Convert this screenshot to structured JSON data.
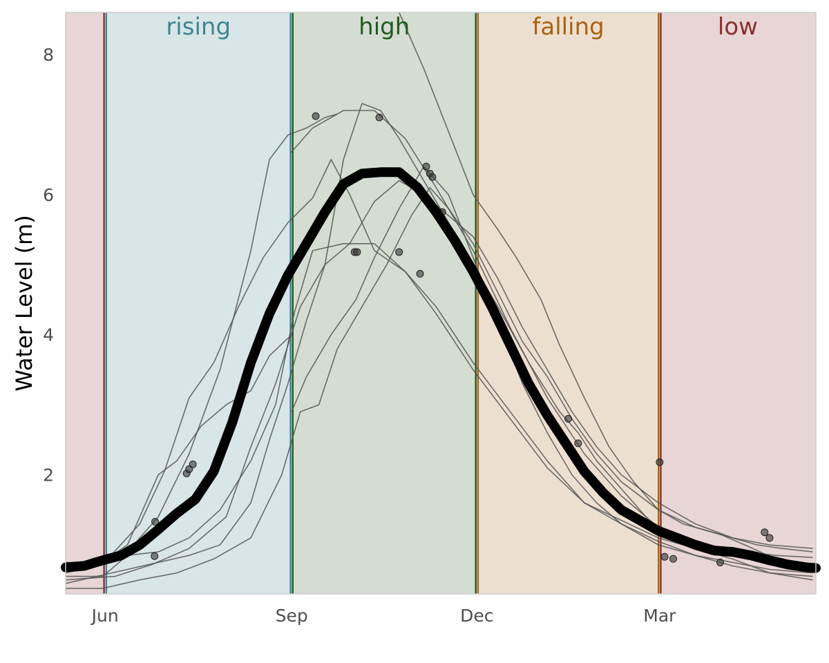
{
  "chart_data": {
    "type": "line",
    "title": "",
    "xlabel": "",
    "ylabel": "Water Level (m)",
    "x_unit": "months since 1 May",
    "xlim": [
      0,
      12.15
    ],
    "ylim": [
      0.3,
      8.6
    ],
    "x_ticks": [
      {
        "label": "Jun",
        "x": 0.64
      },
      {
        "label": "Sep",
        "x": 3.66
      },
      {
        "label": "Dec",
        "x": 6.66
      },
      {
        "label": "Mar",
        "x": 9.62
      }
    ],
    "y_ticks": [
      2,
      4,
      6,
      8
    ],
    "grid": false,
    "legend": "none",
    "phases": [
      {
        "name": "low",
        "label": "",
        "start": 0.0,
        "end": 0.64,
        "color": "#8b2f2f",
        "fill": "#e8d5d5"
      },
      {
        "name": "rising",
        "label": "rising",
        "start": 0.64,
        "end": 3.66,
        "color": "#3f8590",
        "fill": "#d8e6e8"
      },
      {
        "name": "high",
        "label": "high",
        "start": 3.66,
        "end": 6.66,
        "color": "#1f5a1f",
        "fill": "#d5ddd2"
      },
      {
        "name": "falling",
        "label": "falling",
        "start": 6.66,
        "end": 9.62,
        "color": "#a86210",
        "fill": "#eddfd0"
      },
      {
        "name": "low",
        "label": "low",
        "start": 9.62,
        "end": 12.15,
        "color": "#8b2f2f",
        "fill": "#e8d5d5"
      }
    ],
    "boundary_lines": [
      {
        "x": 0.64,
        "color_left": "#8b2f2f",
        "color_right": "#3f8590"
      },
      {
        "x": 3.66,
        "color_left": "#3f8590",
        "color_right": "#1f5a1f"
      },
      {
        "x": 6.66,
        "color_left": "#1f5a1f",
        "color_right": "#a86210"
      },
      {
        "x": 9.62,
        "color_left": "#a86210",
        "color_right": "#8b2f2f"
      }
    ],
    "mean_series": {
      "name": "",
      "color": "#000000",
      "points": [
        [
          0.0,
          0.68
        ],
        [
          0.3,
          0.7
        ],
        [
          0.6,
          0.78
        ],
        [
          0.9,
          0.85
        ],
        [
          1.2,
          1.0
        ],
        [
          1.5,
          1.22
        ],
        [
          1.8,
          1.45
        ],
        [
          2.1,
          1.65
        ],
        [
          2.4,
          2.05
        ],
        [
          2.7,
          2.75
        ],
        [
          3.0,
          3.6
        ],
        [
          3.3,
          4.3
        ],
        [
          3.6,
          4.85
        ],
        [
          3.9,
          5.3
        ],
        [
          4.2,
          5.75
        ],
        [
          4.5,
          6.15
        ],
        [
          4.8,
          6.3
        ],
        [
          5.1,
          6.32
        ],
        [
          5.4,
          6.32
        ],
        [
          5.7,
          6.1
        ],
        [
          6.0,
          5.75
        ],
        [
          6.3,
          5.35
        ],
        [
          6.6,
          4.9
        ],
        [
          6.9,
          4.4
        ],
        [
          7.2,
          3.85
        ],
        [
          7.5,
          3.3
        ],
        [
          7.8,
          2.85
        ],
        [
          8.1,
          2.45
        ],
        [
          8.4,
          2.05
        ],
        [
          8.7,
          1.75
        ],
        [
          9.0,
          1.5
        ],
        [
          9.3,
          1.35
        ],
        [
          9.6,
          1.2
        ],
        [
          9.9,
          1.1
        ],
        [
          10.2,
          1.0
        ],
        [
          10.5,
          0.92
        ],
        [
          10.8,
          0.9
        ],
        [
          11.1,
          0.85
        ],
        [
          11.4,
          0.78
        ],
        [
          11.7,
          0.72
        ],
        [
          12.0,
          0.68
        ],
        [
          12.15,
          0.67
        ]
      ]
    },
    "series": [
      {
        "name": "",
        "color": "#555555",
        "points": [
          [
            0.0,
            0.75
          ],
          [
            0.5,
            0.72
          ],
          [
            1.0,
            0.9
          ],
          [
            1.5,
            1.4
          ],
          [
            2.0,
            2.3
          ],
          [
            2.5,
            3.5
          ],
          [
            3.0,
            5.2
          ],
          [
            3.3,
            6.5
          ],
          [
            3.6,
            6.85
          ],
          [
            3.9,
            6.95
          ],
          [
            4.2,
            7.1
          ],
          [
            4.4,
            7.15
          ]
        ]
      },
      {
        "name": "",
        "color": "#555555",
        "points": [
          [
            3.65,
            6.6
          ],
          [
            4.0,
            6.95
          ],
          [
            4.5,
            7.2
          ],
          [
            5.0,
            7.2
          ],
          [
            5.5,
            6.8
          ],
          [
            6.0,
            6.1
          ],
          [
            6.6,
            5.2
          ],
          [
            7.2,
            4.1
          ],
          [
            7.8,
            3.1
          ],
          [
            8.4,
            2.3
          ],
          [
            9.0,
            1.7
          ],
          [
            9.6,
            1.25
          ],
          [
            10.2,
            1.0
          ],
          [
            10.8,
            0.85
          ],
          [
            11.4,
            0.75
          ],
          [
            12.1,
            0.7
          ]
        ]
      },
      {
        "name": "",
        "color": "#555555",
        "points": [
          [
            0.0,
            0.45
          ],
          [
            0.5,
            0.55
          ],
          [
            1.0,
            0.65
          ],
          [
            1.5,
            0.75
          ],
          [
            2.0,
            0.85
          ],
          [
            2.5,
            1.0
          ],
          [
            3.0,
            1.6
          ],
          [
            3.3,
            2.5
          ],
          [
            3.6,
            3.3
          ],
          [
            3.9,
            4.2
          ],
          [
            4.2,
            5.0
          ],
          [
            4.5,
            6.5
          ],
          [
            4.8,
            7.3
          ],
          [
            5.1,
            7.2
          ],
          [
            5.4,
            6.8
          ],
          [
            5.8,
            6.2
          ],
          [
            6.2,
            5.6
          ],
          [
            6.6,
            5.0
          ],
          [
            7.0,
            4.4
          ],
          [
            7.5,
            3.6
          ],
          [
            8.0,
            2.9
          ],
          [
            8.3,
            2.6
          ],
          [
            8.6,
            2.2
          ],
          [
            9.0,
            1.8
          ],
          [
            9.5,
            1.3
          ],
          [
            10.0,
            1.05
          ],
          [
            10.5,
            0.95
          ],
          [
            11.0,
            0.9
          ],
          [
            11.5,
            0.85
          ],
          [
            12.1,
            0.82
          ]
        ]
      },
      {
        "name": "",
        "color": "#555555",
        "points": [
          [
            3.66,
            2.9
          ],
          [
            3.9,
            3.4
          ],
          [
            4.3,
            4.0
          ],
          [
            4.7,
            4.5
          ],
          [
            5.0,
            5.1
          ],
          [
            5.4,
            5.8
          ],
          [
            5.8,
            6.4
          ],
          [
            6.2,
            6.0
          ],
          [
            6.6,
            5.1
          ],
          [
            7.0,
            4.2
          ],
          [
            7.4,
            3.3
          ],
          [
            7.8,
            2.6
          ],
          [
            8.2,
            2.0
          ],
          [
            8.6,
            1.6
          ],
          [
            9.0,
            1.3
          ],
          [
            9.6,
            1.0
          ],
          [
            10.2,
            0.85
          ],
          [
            10.8,
            0.75
          ],
          [
            11.4,
            0.65
          ],
          [
            12.1,
            0.6
          ]
        ]
      },
      {
        "name": "",
        "color": "#555555",
        "points": [
          [
            0.0,
            0.6
          ],
          [
            0.6,
            0.72
          ],
          [
            1.2,
            1.3
          ],
          [
            1.6,
            2.05
          ],
          [
            2.0,
            3.1
          ],
          [
            2.4,
            3.6
          ],
          [
            2.8,
            4.4
          ],
          [
            3.2,
            5.1
          ],
          [
            3.6,
            5.6
          ],
          [
            4.0,
            5.95
          ],
          [
            4.3,
            6.5
          ],
          [
            4.6,
            6.0
          ],
          [
            5.0,
            5.2
          ],
          [
            5.5,
            4.9
          ],
          [
            6.0,
            4.3
          ],
          [
            6.6,
            3.5
          ],
          [
            7.2,
            2.8
          ],
          [
            7.8,
            2.1
          ],
          [
            8.4,
            1.6
          ],
          [
            9.0,
            1.35
          ],
          [
            9.6,
            1.1
          ],
          [
            10.2,
            0.95
          ],
          [
            10.8,
            0.8
          ],
          [
            11.4,
            0.6
          ],
          [
            12.1,
            0.5
          ]
        ]
      },
      {
        "name": "",
        "color": "#555555",
        "points": [
          [
            0.0,
            0.55
          ],
          [
            0.6,
            0.55
          ],
          [
            1.0,
            0.85
          ],
          [
            1.5,
            0.9
          ],
          [
            2.0,
            1.1
          ],
          [
            2.5,
            1.5
          ],
          [
            3.0,
            2.2
          ],
          [
            3.4,
            3.0
          ],
          [
            3.7,
            4.3
          ],
          [
            4.0,
            5.2
          ],
          [
            4.5,
            5.3
          ],
          [
            5.0,
            5.3
          ],
          [
            5.5,
            4.9
          ],
          [
            6.0,
            4.4
          ],
          [
            6.6,
            3.6
          ],
          [
            7.2,
            2.9
          ],
          [
            7.8,
            2.2
          ],
          [
            8.4,
            1.6
          ],
          [
            9.0,
            1.3
          ],
          [
            9.6,
            1.05
          ],
          [
            10.2,
            0.85
          ],
          [
            10.8,
            0.7
          ],
          [
            11.4,
            0.6
          ],
          [
            12.1,
            0.55
          ]
        ]
      },
      {
        "name": "",
        "color": "#555555",
        "points": [
          [
            0.0,
            0.38
          ],
          [
            0.6,
            0.38
          ],
          [
            1.2,
            0.5
          ],
          [
            1.8,
            0.6
          ],
          [
            2.4,
            0.8
          ],
          [
            3.0,
            1.1
          ],
          [
            3.5,
            2.0
          ],
          [
            3.8,
            2.9
          ],
          [
            4.1,
            3.0
          ],
          [
            4.4,
            3.8
          ],
          [
            4.8,
            4.4
          ],
          [
            5.2,
            5.0
          ],
          [
            5.6,
            5.7
          ],
          [
            5.9,
            6.1
          ],
          [
            6.2,
            5.8
          ],
          [
            6.6,
            5.3
          ],
          [
            7.0,
            4.6
          ],
          [
            7.4,
            3.9
          ],
          [
            7.8,
            3.4
          ],
          [
            8.2,
            2.8
          ],
          [
            8.6,
            2.3
          ],
          [
            9.0,
            1.9
          ],
          [
            9.6,
            1.5
          ],
          [
            10.2,
            1.25
          ],
          [
            10.6,
            1.15
          ],
          [
            11.0,
            1.0
          ],
          [
            11.5,
            0.8
          ],
          [
            12.1,
            0.62
          ]
        ]
      },
      {
        "name": "",
        "color": "#555555",
        "points": [
          [
            0.0,
            0.5
          ],
          [
            0.8,
            0.55
          ],
          [
            1.4,
            0.72
          ],
          [
            2.0,
            0.95
          ],
          [
            2.6,
            1.4
          ],
          [
            3.0,
            2.4
          ],
          [
            3.4,
            3.3
          ],
          [
            3.8,
            4.4
          ],
          [
            4.2,
            5.0
          ],
          [
            4.6,
            5.3
          ],
          [
            5.0,
            5.9
          ],
          [
            5.4,
            6.2
          ],
          [
            5.8,
            6.0
          ],
          [
            6.2,
            5.7
          ],
          [
            6.6,
            5.4
          ],
          [
            7.0,
            4.8
          ],
          [
            7.4,
            4.1
          ],
          [
            7.8,
            3.5
          ],
          [
            8.2,
            2.9
          ],
          [
            8.6,
            2.4
          ],
          [
            9.0,
            2.0
          ],
          [
            9.6,
            1.6
          ],
          [
            10.2,
            1.3
          ],
          [
            10.8,
            1.1
          ],
          [
            11.4,
            1.0
          ],
          [
            12.1,
            0.95
          ]
        ]
      },
      {
        "name": "",
        "color": "#555555",
        "points": [
          [
            0.0,
            0.65
          ],
          [
            0.5,
            0.7
          ],
          [
            1.0,
            1.0
          ],
          [
            1.5,
            2.0
          ],
          [
            1.8,
            2.2
          ],
          [
            2.2,
            2.7
          ],
          [
            2.6,
            3.0
          ],
          [
            3.0,
            3.2
          ],
          [
            3.3,
            3.7
          ],
          [
            3.66,
            4.0
          ]
        ]
      },
      {
        "name": "",
        "color": "#555555",
        "points": [
          [
            5.4,
            8.6
          ],
          [
            5.8,
            7.8
          ],
          [
            6.2,
            6.9
          ],
          [
            6.6,
            6.0
          ],
          [
            7.0,
            5.5
          ],
          [
            7.3,
            5.1
          ],
          [
            7.7,
            4.5
          ],
          [
            8.0,
            3.85
          ],
          [
            8.4,
            3.1
          ],
          [
            8.8,
            2.4
          ],
          [
            9.2,
            1.9
          ],
          [
            9.6,
            1.5
          ],
          [
            10.0,
            1.3
          ],
          [
            10.4,
            1.2
          ],
          [
            10.8,
            1.1
          ],
          [
            11.2,
            1.0
          ],
          [
            11.6,
            0.95
          ],
          [
            12.1,
            0.9
          ]
        ]
      }
    ],
    "markers": [
      [
        4.05,
        7.12
      ],
      [
        5.08,
        7.1
      ],
      [
        4.68,
        5.18
      ],
      [
        4.72,
        5.18
      ],
      [
        5.4,
        5.18
      ],
      [
        5.74,
        4.87
      ],
      [
        5.84,
        6.4
      ],
      [
        5.9,
        6.3
      ],
      [
        5.94,
        6.25
      ],
      [
        6.1,
        5.75
      ],
      [
        1.44,
        0.84
      ],
      [
        1.45,
        1.33
      ],
      [
        1.96,
        2.02
      ],
      [
        2.0,
        2.08
      ],
      [
        2.06,
        2.15
      ],
      [
        8.14,
        2.8
      ],
      [
        8.3,
        2.45
      ],
      [
        9.62,
        2.18
      ],
      [
        9.7,
        0.83
      ],
      [
        9.84,
        0.8
      ],
      [
        10.6,
        0.75
      ],
      [
        11.32,
        1.18
      ],
      [
        11.4,
        1.1
      ]
    ]
  }
}
